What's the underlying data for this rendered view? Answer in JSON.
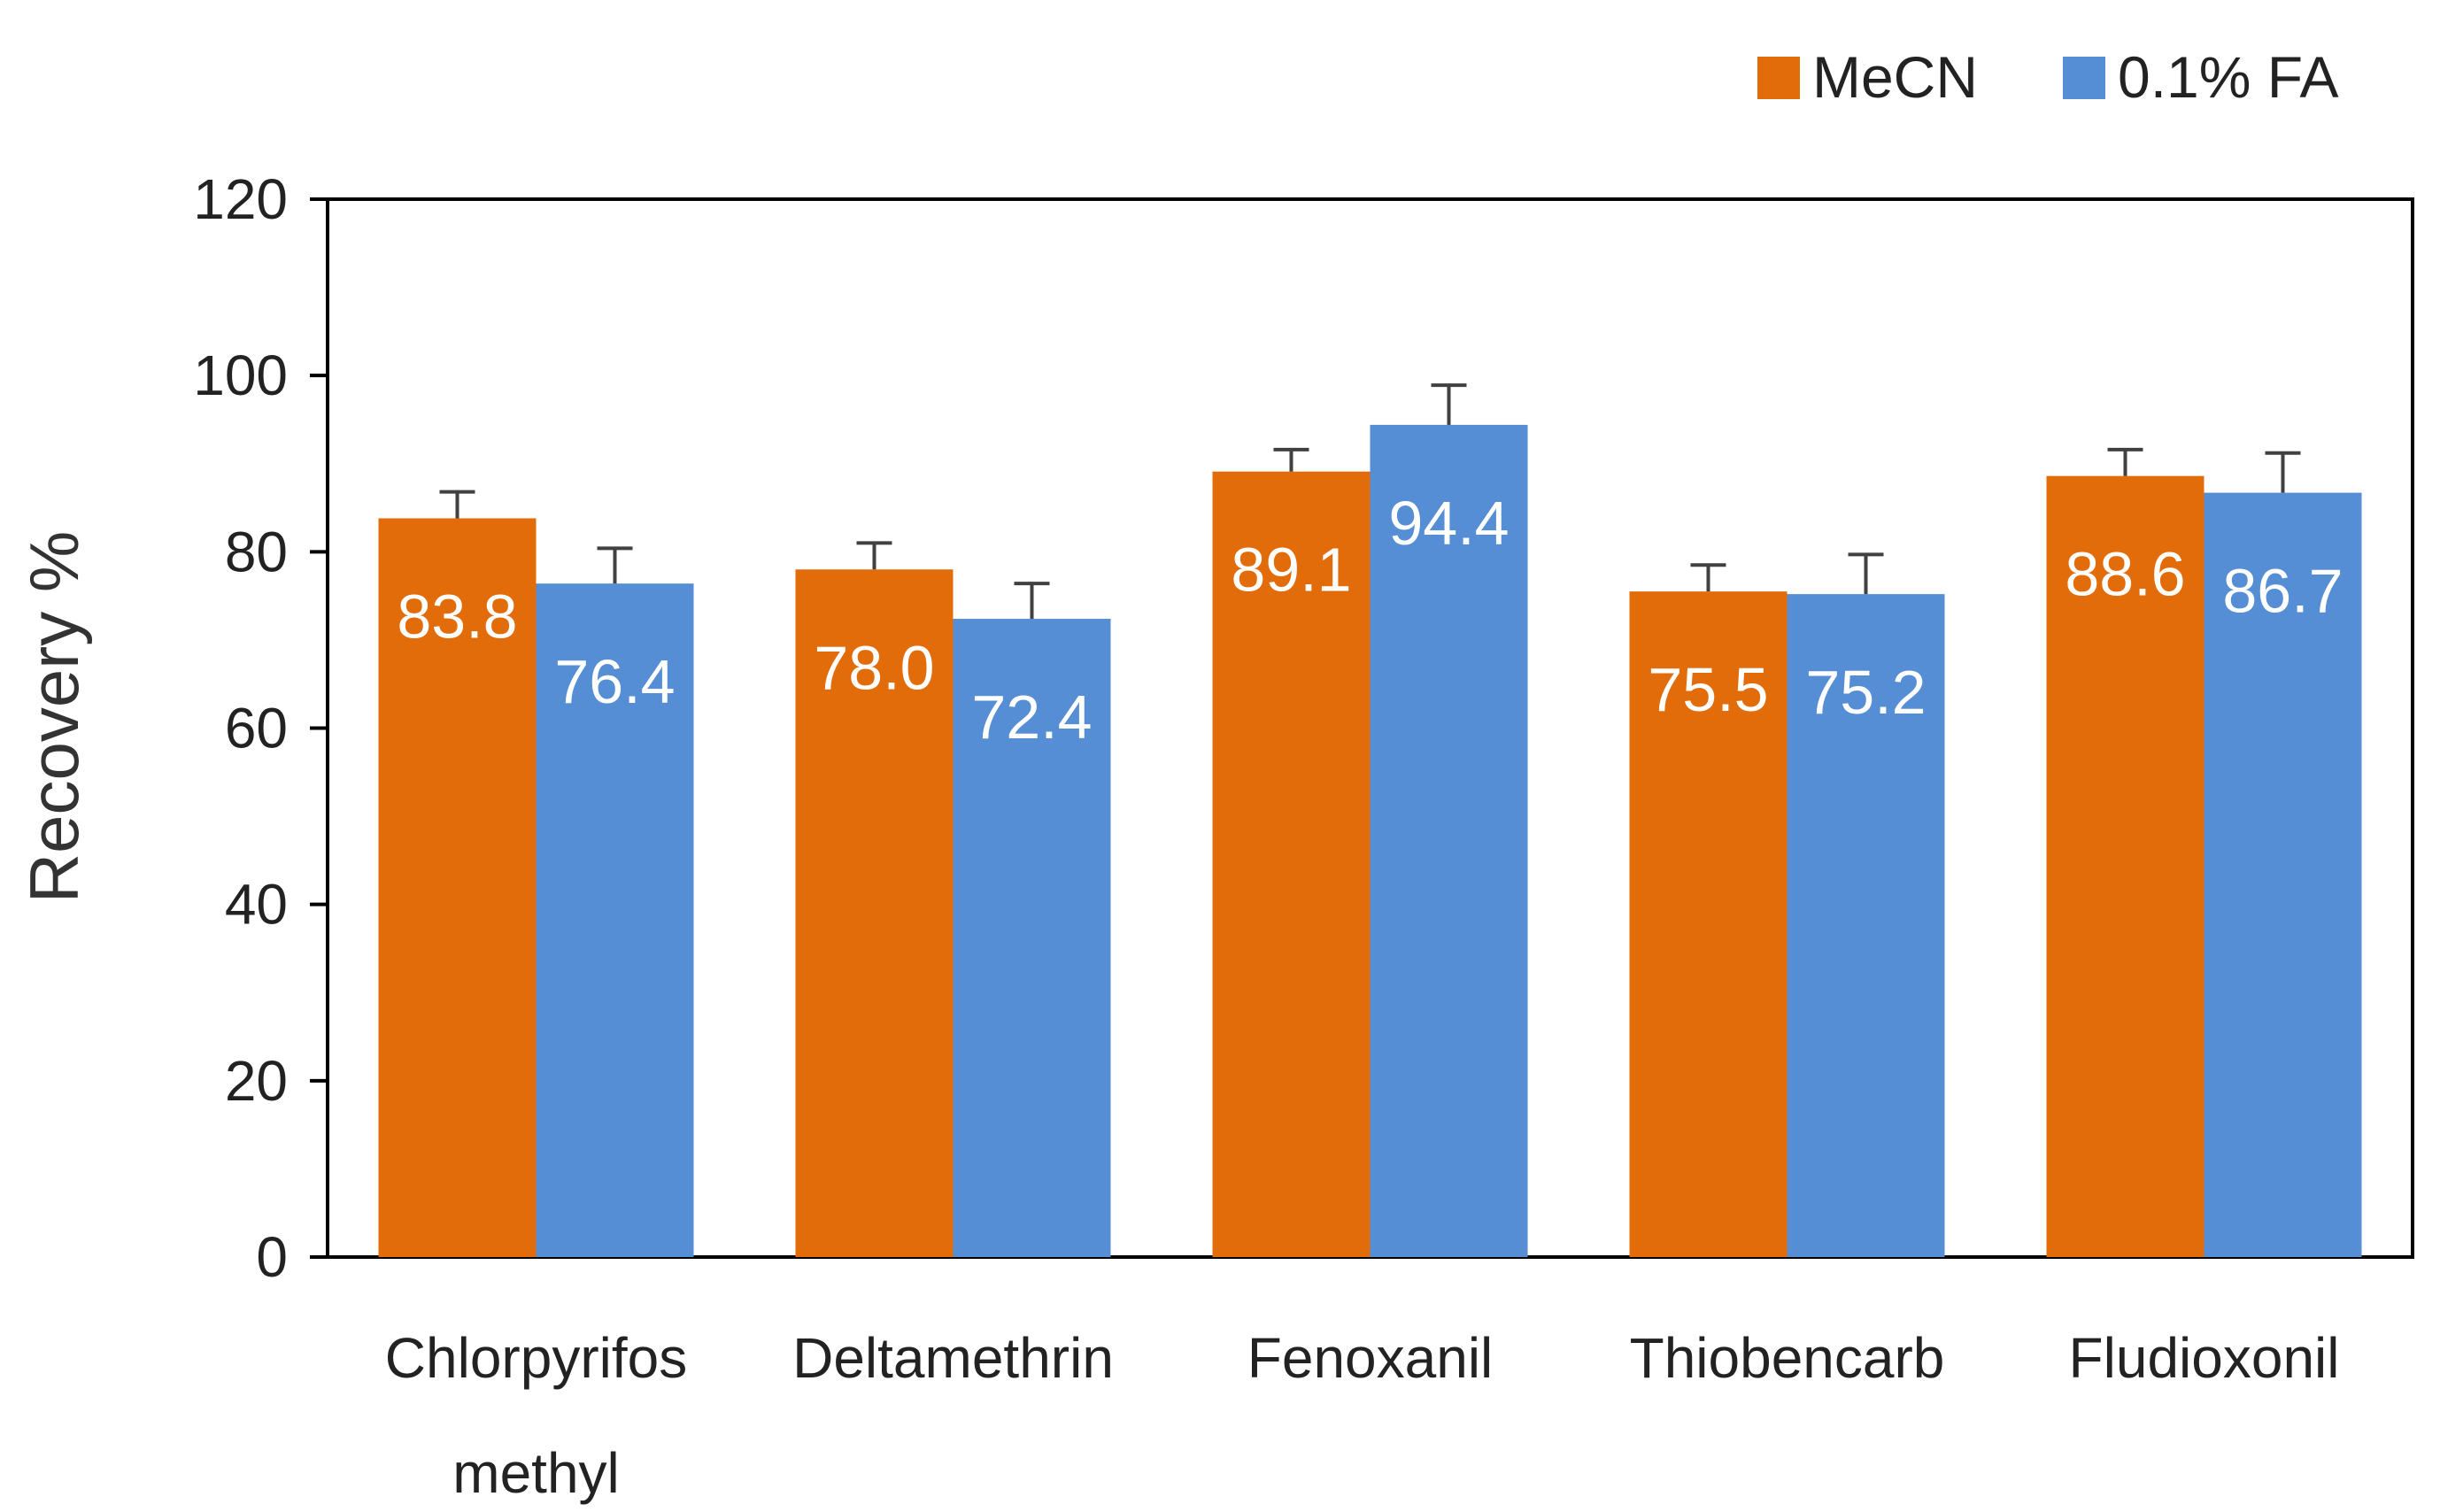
{
  "chart_data": {
    "type": "bar",
    "title": "",
    "xlabel": "",
    "ylabel": "Recovery %",
    "ylim": [
      0,
      120
    ],
    "yticks": [
      "0",
      "20",
      "40",
      "60",
      "80",
      "100",
      "120"
    ],
    "categories": [
      [
        "Chlorpyrifos",
        "methyl"
      ],
      [
        "Deltamethrin"
      ],
      [
        "Fenoxanil"
      ],
      [
        "Thiobencarb"
      ],
      [
        "Fludioxonil"
      ]
    ],
    "series": [
      {
        "name": "MeCN",
        "color": "#E36C0A",
        "values": [
          83.8,
          78.0,
          89.1,
          75.5,
          88.6
        ],
        "labels": [
          "83.8",
          "78.0",
          "89.1",
          "75.5",
          "88.6"
        ],
        "errors": [
          3,
          3,
          2.5,
          3,
          3
        ]
      },
      {
        "name": "0.1% FA",
        "color": "#558ED5",
        "values": [
          76.4,
          72.4,
          94.4,
          75.2,
          86.7
        ],
        "labels": [
          "76.4",
          "72.4",
          "94.4",
          "75.2",
          "86.7"
        ],
        "errors": [
          4,
          4,
          4.5,
          4.5,
          4.5
        ]
      }
    ],
    "legend_position": "top-right",
    "grid": false
  }
}
